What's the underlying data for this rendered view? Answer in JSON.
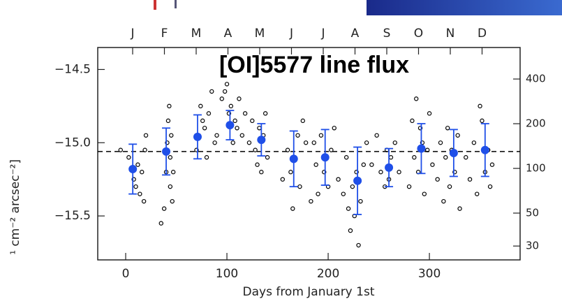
{
  "chart_data": {
    "type": "scatter",
    "title": "[OI]5577 line flux",
    "x_label": "Days from January 1st",
    "y_label": "¹ cm⁻² arcsec⁻²]",
    "top_categories": [
      "J",
      "F",
      "M",
      "A",
      "M",
      "J",
      "J",
      "A",
      "S",
      "O",
      "N",
      "D"
    ],
    "xlim": [
      -27.6,
      389.6
    ],
    "xticks": [
      0,
      100,
      200,
      300
    ],
    "ylim": [
      -15.8,
      -14.35
    ],
    "yticks": [
      {
        "value": -14.5,
        "label": "−14.5"
      },
      {
        "value": -15.0,
        "label": "−15.0"
      },
      {
        "value": -15.5,
        "label": "−15.5"
      }
    ],
    "y2lim": [
      24.2,
      652
    ],
    "y2_log": true,
    "y2ticks": [
      30,
      50,
      100,
      200,
      400
    ],
    "reference_line": -15.06,
    "points": {
      "color": "#000000",
      "x": [
        -5,
        3,
        8,
        10,
        12,
        14,
        16,
        18,
        19,
        20,
        35,
        38,
        40,
        41,
        42,
        43,
        44,
        44,
        45,
        46,
        47,
        70,
        72,
        74,
        76,
        78,
        80,
        82,
        85,
        88,
        90,
        95,
        98,
        100,
        102,
        104,
        106,
        108,
        110,
        112,
        115,
        118,
        122,
        125,
        128,
        130,
        132,
        134,
        136,
        138,
        140,
        155,
        160,
        163,
        165,
        167,
        170,
        172,
        175,
        178,
        183,
        186,
        188,
        190,
        193,
        196,
        198,
        200,
        203,
        206,
        210,
        215,
        218,
        220,
        222,
        224,
        226,
        228,
        230,
        232,
        235,
        238,
        243,
        248,
        252,
        256,
        258,
        260,
        262,
        266,
        270,
        280,
        283,
        285,
        287,
        289,
        291,
        293,
        295,
        298,
        300,
        303,
        308,
        311,
        314,
        316,
        318,
        320,
        322,
        325,
        328,
        330,
        336,
        340,
        344,
        347,
        350,
        352,
        355,
        358,
        360,
        362
      ],
      "values": [
        -15.05,
        -15.1,
        -15.25,
        -15.3,
        -15.15,
        -15.35,
        -15.2,
        -15.4,
        -15.05,
        -14.95,
        -15.55,
        -15.45,
        -15.2,
        -15.0,
        -14.85,
        -14.75,
        -15.3,
        -15.1,
        -14.95,
        -15.4,
        -15.2,
        -15.05,
        -14.95,
        -14.75,
        -14.85,
        -14.9,
        -15.1,
        -14.8,
        -14.65,
        -15.0,
        -14.95,
        -14.7,
        -14.65,
        -14.6,
        -14.8,
        -14.75,
        -15.0,
        -14.85,
        -14.9,
        -14.7,
        -14.95,
        -14.8,
        -15.0,
        -14.85,
        -15.05,
        -15.15,
        -14.9,
        -15.2,
        -14.95,
        -14.8,
        -15.1,
        -15.25,
        -15.05,
        -15.2,
        -15.45,
        -15.1,
        -14.95,
        -15.3,
        -14.85,
        -15.0,
        -15.4,
        -15.0,
        -15.15,
        -15.35,
        -14.95,
        -15.2,
        -15.1,
        -15.3,
        -15.05,
        -14.9,
        -15.25,
        -15.35,
        -15.1,
        -15.45,
        -15.6,
        -15.3,
        -15.5,
        -15.2,
        -15.7,
        -15.4,
        -15.15,
        -15.0,
        -15.15,
        -14.95,
        -15.2,
        -15.3,
        -15.05,
        -15.25,
        -15.1,
        -15.0,
        -15.2,
        -15.3,
        -14.85,
        -15.1,
        -14.7,
        -15.2,
        -14.9,
        -15.0,
        -15.35,
        -15.05,
        -14.8,
        -15.15,
        -15.25,
        -15.0,
        -15.4,
        -15.1,
        -14.9,
        -15.3,
        -15.05,
        -15.2,
        -14.95,
        -15.45,
        -15.1,
        -15.25,
        -15.0,
        -15.35,
        -14.75,
        -14.85,
        -15.2,
        -15.05,
        -15.3,
        -15.15
      ]
    },
    "means": {
      "color": "#1f4fe8",
      "x": [
        7,
        40,
        71,
        103,
        134,
        166,
        197,
        229,
        260,
        292,
        324,
        355
      ],
      "values": [
        -15.18,
        -15.06,
        -14.96,
        -14.88,
        -14.98,
        -15.11,
        -15.1,
        -15.26,
        -15.17,
        -15.04,
        -15.07,
        -15.05
      ],
      "errors": [
        0.17,
        0.16,
        0.15,
        0.1,
        0.11,
        0.19,
        0.19,
        0.23,
        0.13,
        0.17,
        0.16,
        0.18
      ]
    }
  }
}
